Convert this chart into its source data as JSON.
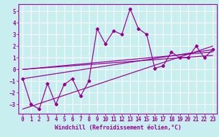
{
  "title": "",
  "xlabel": "Windchill (Refroidissement éolien,°C)",
  "bg_color": "#c8eef0",
  "grid_color": "#ffffff",
  "line_color": "#990099",
  "spine_color": "#990099",
  "tick_color": "#990099",
  "label_color": "#990099",
  "xlim": [
    -0.5,
    23.5
  ],
  "ylim": [
    -3.8,
    5.6
  ],
  "xticks": [
    0,
    1,
    2,
    3,
    4,
    5,
    6,
    7,
    8,
    9,
    10,
    11,
    12,
    13,
    14,
    15,
    16,
    17,
    18,
    19,
    20,
    21,
    22,
    23
  ],
  "yticks": [
    -3,
    -2,
    -1,
    0,
    1,
    2,
    3,
    4,
    5
  ],
  "series1_x": [
    0,
    1,
    2,
    3,
    4,
    5,
    6,
    7,
    8,
    9,
    10,
    11,
    12,
    13,
    14,
    15,
    16,
    17,
    18,
    19,
    20,
    21,
    22,
    23
  ],
  "series1_y": [
    -0.8,
    -3.0,
    -3.4,
    -1.2,
    -3.0,
    -1.3,
    -0.8,
    -2.3,
    -1.0,
    3.5,
    2.2,
    3.3,
    3.0,
    5.2,
    3.5,
    3.0,
    0.1,
    0.3,
    1.5,
    1.0,
    1.0,
    2.0,
    1.0,
    1.7
  ],
  "line2_x": [
    0,
    23
  ],
  "line2_y": [
    -3.4,
    2.0
  ],
  "line3_x": [
    0,
    23
  ],
  "line3_y": [
    -0.8,
    1.7
  ],
  "line4_x": [
    0,
    23
  ],
  "line4_y": [
    0.0,
    1.5
  ],
  "line5_x": [
    0,
    23
  ],
  "line5_y": [
    0.0,
    1.2
  ],
  "tick_fontsize": 5.5,
  "xlabel_fontsize": 6.0
}
